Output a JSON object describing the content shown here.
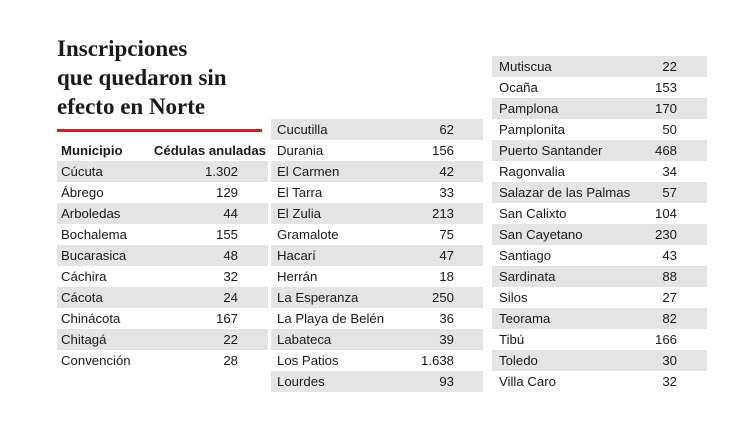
{
  "title": "Inscripciones\nque quedaron sin\nefecto en Norte",
  "header": {
    "municipio": "Municipio",
    "cedulas": "Cédulas anuladas"
  },
  "accent_color": "#c0272d",
  "col1": [
    {
      "name": "Cúcuta",
      "value": "1.302"
    },
    {
      "name": "Ábrego",
      "value": "129"
    },
    {
      "name": "Arboledas",
      "value": "44"
    },
    {
      "name": "Bochalema",
      "value": "155"
    },
    {
      "name": "Bucarasica",
      "value": "48"
    },
    {
      "name": "Cáchira",
      "value": "32"
    },
    {
      "name": "Cácota",
      "value": "24"
    },
    {
      "name": "Chinácota",
      "value": "167"
    },
    {
      "name": "Chitagá",
      "value": "22"
    },
    {
      "name": "Convención",
      "value": "28"
    }
  ],
  "col2": [
    {
      "name": "Cucutilla",
      "value": "62"
    },
    {
      "name": "Durania",
      "value": "156"
    },
    {
      "name": "El Carmen",
      "value": "42"
    },
    {
      "name": "El Tarra",
      "value": "33"
    },
    {
      "name": "El Zulia",
      "value": "213"
    },
    {
      "name": "Gramalote",
      "value": "75"
    },
    {
      "name": "Hacarí",
      "value": "47"
    },
    {
      "name": "Herrán",
      "value": "18"
    },
    {
      "name": "La Esperanza",
      "value": "250"
    },
    {
      "name": "La Playa de Belén",
      "value": "36"
    },
    {
      "name": "Labateca",
      "value": "39"
    },
    {
      "name": "Los Patios",
      "value": "1.638"
    },
    {
      "name": "Lourdes",
      "value": "93"
    }
  ],
  "col3": [
    {
      "name": "Mutiscua",
      "value": "22"
    },
    {
      "name": "Ocaña",
      "value": "153"
    },
    {
      "name": "Pamplona",
      "value": "170"
    },
    {
      "name": "Pamplonita",
      "value": "50"
    },
    {
      "name": "Puerto Santander",
      "value": "468"
    },
    {
      "name": "Ragonvalia",
      "value": "34"
    },
    {
      "name": "Salazar de las Palmas",
      "value": "57"
    },
    {
      "name": "San Calixto",
      "value": "104"
    },
    {
      "name": "San Cayetano",
      "value": "230"
    },
    {
      "name": "Santiago",
      "value": "43"
    },
    {
      "name": "Sardinata",
      "value": "88"
    },
    {
      "name": "Silos",
      "value": "27"
    },
    {
      "name": "Teorama",
      "value": "82"
    },
    {
      "name": "Tibú",
      "value": "166"
    },
    {
      "name": "Toledo",
      "value": "30"
    },
    {
      "name": "Villa Caro",
      "value": "32"
    }
  ]
}
